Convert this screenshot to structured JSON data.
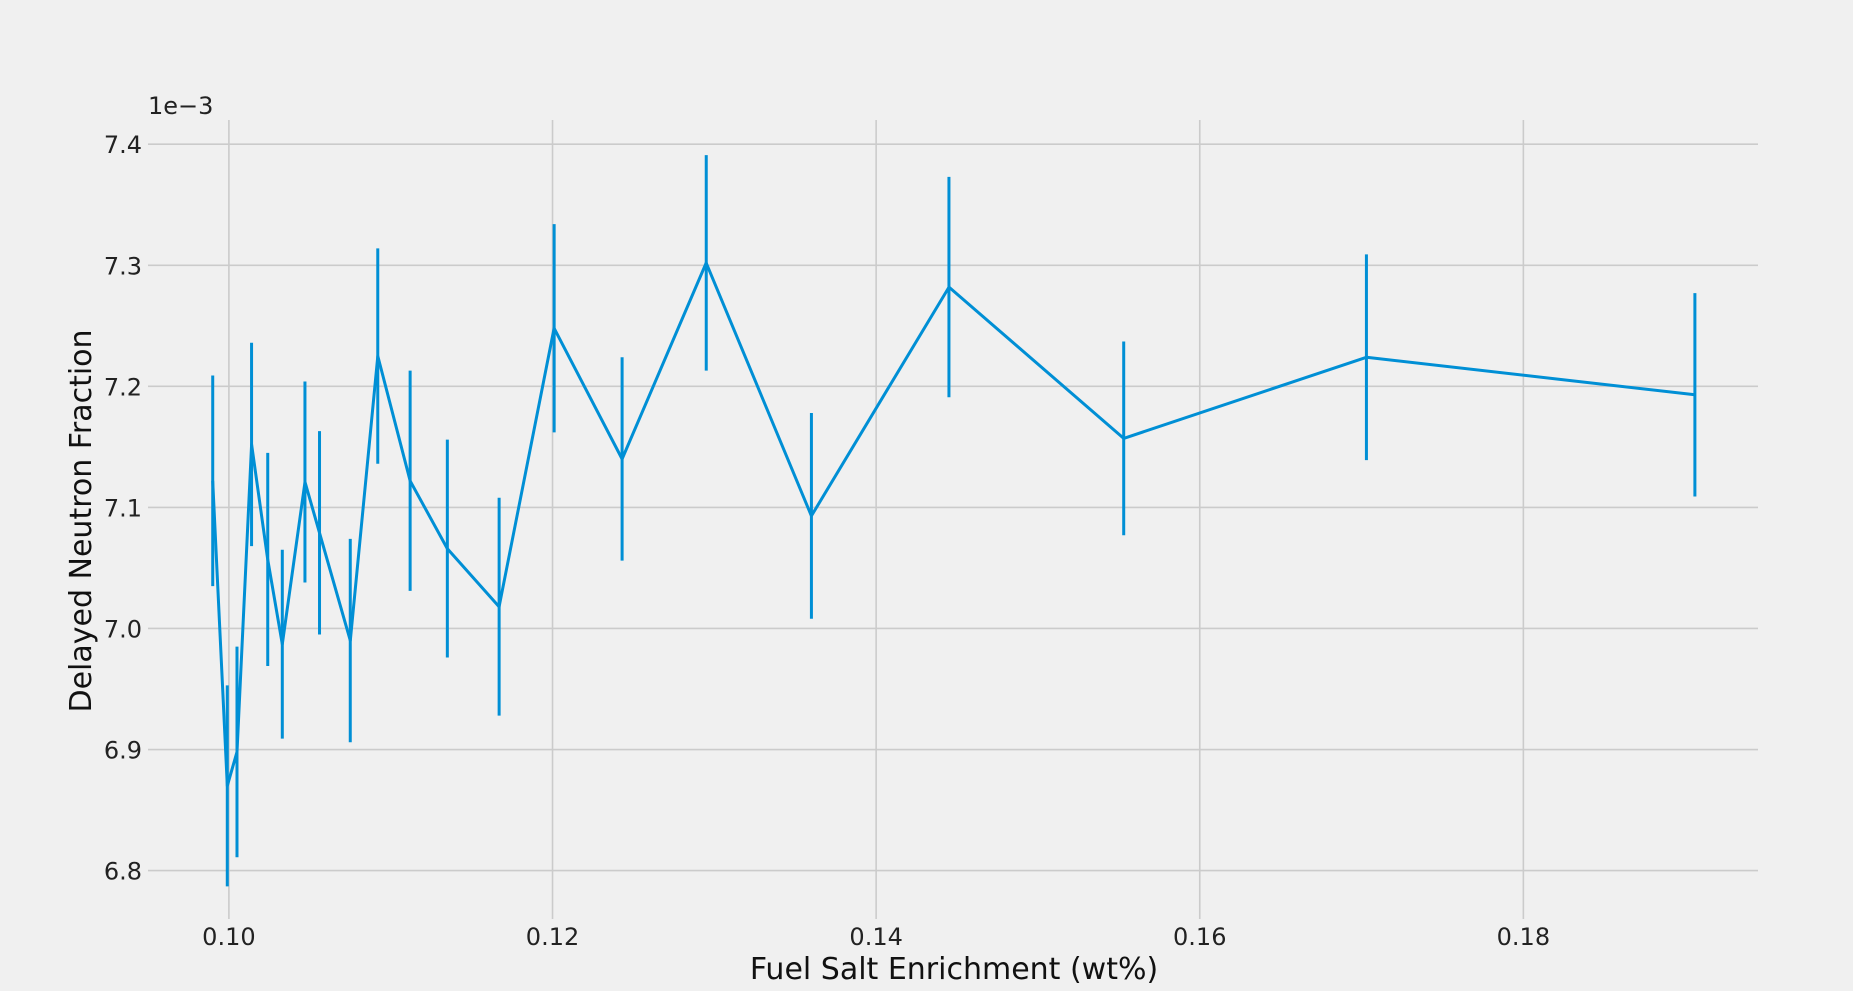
{
  "chart_data": {
    "type": "line",
    "xlabel": "Fuel Salt Enrichment (wt%)",
    "ylabel": "Delayed Neutron Fraction",
    "y_offset_label": "1e−3",
    "xlim": [
      0.095,
      0.1945
    ],
    "ylim": [
      6.76,
      7.42
    ],
    "x_ticks": [
      0.1,
      0.12,
      0.14,
      0.16,
      0.18
    ],
    "x_tick_labels": [
      "0.10",
      "0.12",
      "0.14",
      "0.16",
      "0.18"
    ],
    "y_ticks": [
      6.8,
      6.9,
      7.0,
      7.1,
      7.2,
      7.3,
      7.4
    ],
    "y_tick_labels": [
      "6.8",
      "6.9",
      "7.0",
      "7.1",
      "7.2",
      "7.3",
      "7.4"
    ],
    "grid": true,
    "legend": "none",
    "color": "#008fd5",
    "series": [
      {
        "x": [
          0.099,
          0.0999,
          0.1005,
          0.1014,
          0.1024,
          0.1033,
          0.1047,
          0.1056,
          0.1075,
          0.1092,
          0.1112,
          0.1135,
          0.1167,
          0.1201,
          0.1243,
          0.1295,
          0.136,
          0.1445,
          0.1553,
          0.1703,
          0.1906
        ],
        "y": [
          7.122,
          6.87,
          6.898,
          7.152,
          7.057,
          6.987,
          7.121,
          7.079,
          6.99,
          7.225,
          7.122,
          7.066,
          7.018,
          7.248,
          7.14,
          7.302,
          7.093,
          7.282,
          7.157,
          7.224,
          7.193
        ],
        "err": [
          0.087,
          0.083,
          0.087,
          0.084,
          0.088,
          0.078,
          0.083,
          0.084,
          0.084,
          0.089,
          0.091,
          0.09,
          0.09,
          0.086,
          0.084,
          0.089,
          0.085,
          0.091,
          0.08,
          0.085,
          0.084
        ]
      }
    ]
  }
}
